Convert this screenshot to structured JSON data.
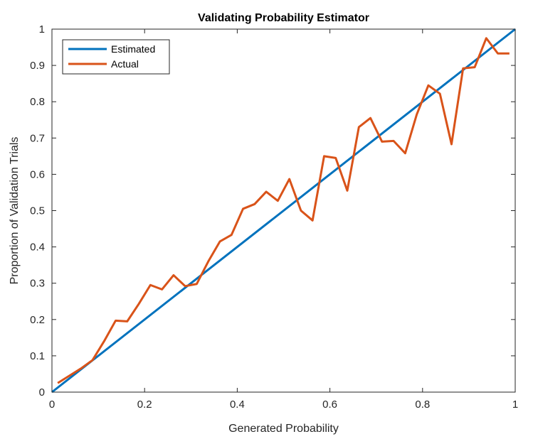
{
  "chart_data": {
    "type": "line",
    "title": "Validating Probability Estimator",
    "xlabel": "Generated Probability",
    "ylabel": "Proportion of Validation Trials",
    "xlim": [
      0,
      1
    ],
    "ylim": [
      0,
      1
    ],
    "x_ticks": [
      "0",
      "0.2",
      "0.4",
      "0.6",
      "0.8",
      "1"
    ],
    "y_ticks": [
      "0",
      "0.1",
      "0.2",
      "0.3",
      "0.4",
      "0.5",
      "0.6",
      "0.7",
      "0.8",
      "0.9",
      "1"
    ],
    "tick_values_x": [
      0,
      0.2,
      0.4,
      0.6,
      0.8,
      1
    ],
    "tick_values_y": [
      0,
      0.1,
      0.2,
      0.3,
      0.4,
      0.5,
      0.6,
      0.7,
      0.8,
      0.9,
      1
    ],
    "grid": false,
    "legend_position": "top-left",
    "series": [
      {
        "name": "Estimated",
        "color": "#0072BD",
        "x": [
          0,
          1
        ],
        "y": [
          0,
          1
        ]
      },
      {
        "name": "Actual",
        "color": "#D95319",
        "x": [
          0.0125,
          0.0375,
          0.0625,
          0.0875,
          0.1125,
          0.1375,
          0.1625,
          0.1875,
          0.2125,
          0.2375,
          0.2625,
          0.2875,
          0.3125,
          0.3375,
          0.3625,
          0.3875,
          0.4125,
          0.4375,
          0.4625,
          0.4875,
          0.5125,
          0.5375,
          0.5625,
          0.5875,
          0.6125,
          0.6375,
          0.6625,
          0.6875,
          0.7125,
          0.7375,
          0.7625,
          0.7875,
          0.8125,
          0.8375,
          0.8625,
          0.8875,
          0.9125,
          0.9375,
          0.9625,
          0.9875
        ],
        "y": [
          0.025,
          0.045,
          0.065,
          0.088,
          0.14,
          0.197,
          0.195,
          0.243,
          0.295,
          0.283,
          0.322,
          0.292,
          0.298,
          0.36,
          0.415,
          0.433,
          0.505,
          0.518,
          0.552,
          0.527,
          0.587,
          0.5,
          0.473,
          0.65,
          0.645,
          0.555,
          0.73,
          0.755,
          0.69,
          0.692,
          0.658,
          0.765,
          0.845,
          0.822,
          0.683,
          0.892,
          0.895,
          0.975,
          0.933,
          0.933
        ]
      }
    ]
  }
}
